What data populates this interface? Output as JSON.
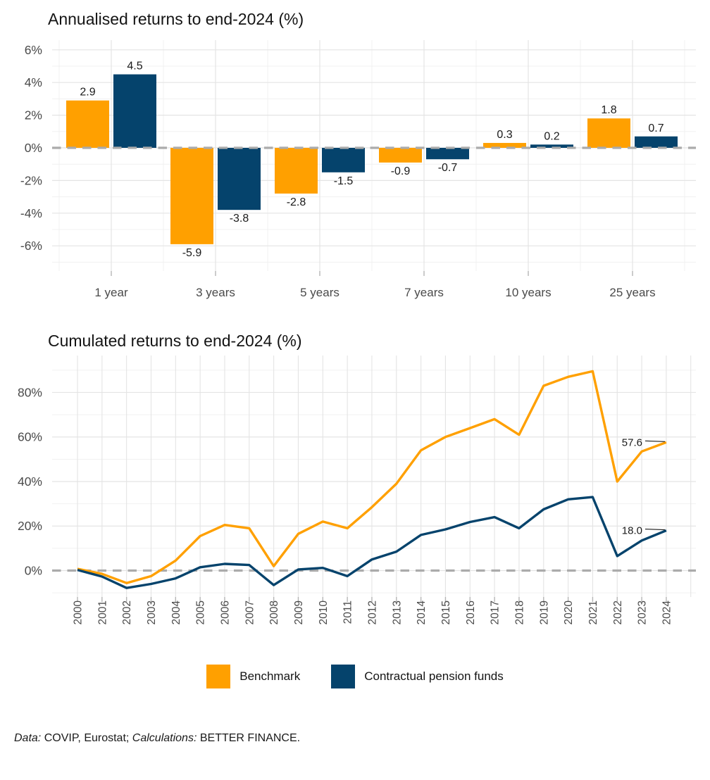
{
  "chart_data": [
    {
      "type": "bar",
      "title": "Annualised returns to end-2024 (%)",
      "categories": [
        "1 year",
        "3 years",
        "5 years",
        "7 years",
        "10 years",
        "25 years"
      ],
      "series": [
        {
          "name": "Benchmark",
          "color": "#FFA000",
          "values": [
            2.9,
            -5.9,
            -2.8,
            -0.9,
            0.3,
            1.8
          ]
        },
        {
          "name": "Contractual pension funds",
          "color": "#05436C",
          "values": [
            4.5,
            -3.8,
            -1.5,
            -0.7,
            0.2,
            0.7
          ]
        }
      ],
      "yticks": [
        6,
        4,
        2,
        0,
        -2,
        -4,
        -6
      ],
      "ytick_labels": [
        "6%",
        "4%",
        "2%",
        "0%",
        "-2%",
        "-4%",
        "-6%"
      ],
      "yticks_minor": [
        5,
        3,
        1,
        -1,
        -3,
        -5,
        -7
      ],
      "ylim": [
        -7.4,
        6.6
      ],
      "grid": true,
      "zero_line": "dashed",
      "bar_labels": true,
      "legend_position": "bottom"
    },
    {
      "type": "line",
      "title": "Cumulated returns to end-2024 (%)",
      "x": [
        2000,
        2001,
        2002,
        2003,
        2004,
        2005,
        2006,
        2007,
        2008,
        2009,
        2010,
        2011,
        2012,
        2013,
        2014,
        2015,
        2016,
        2017,
        2018,
        2019,
        2020,
        2021,
        2022,
        2023,
        2024
      ],
      "series": [
        {
          "name": "Benchmark",
          "color": "#FFA000",
          "end_label": "57.6",
          "values": [
            0.8,
            -1.5,
            -5.6,
            -2.5,
            4.5,
            15.5,
            20.5,
            19.0,
            2.0,
            16.5,
            22.0,
            19.0,
            28.5,
            39.0,
            54.0,
            60.0,
            64.0,
            68.0,
            61.0,
            83.0,
            87.0,
            89.5,
            40.0,
            53.5,
            57.6
          ]
        },
        {
          "name": "Contractual pension funds",
          "color": "#05436C",
          "end_label": "18.0",
          "values": [
            0.3,
            -2.7,
            -7.8,
            -6.0,
            -3.5,
            1.5,
            3.0,
            2.5,
            -6.5,
            0.5,
            1.2,
            -2.5,
            5.0,
            8.5,
            16.0,
            18.5,
            21.8,
            24.0,
            19.0,
            27.5,
            32.0,
            33.0,
            6.5,
            13.5,
            18.0
          ]
        }
      ],
      "yticks": [
        80,
        60,
        40,
        20,
        0
      ],
      "ytick_labels": [
        "80%",
        "60%",
        "40%",
        "20%",
        "0%"
      ],
      "yticks_minor": [
        90,
        70,
        50,
        30,
        10,
        -10
      ],
      "ylim": [
        -12,
        96
      ],
      "grid": true,
      "zero_line": "dashed",
      "legend_position": "bottom"
    }
  ],
  "legend": {
    "items": [
      {
        "label": "Benchmark",
        "color": "#FFA000"
      },
      {
        "label": "Contractual pension funds",
        "color": "#05436C"
      }
    ]
  },
  "footer": {
    "parts": [
      {
        "text": "Data:",
        "italic": true
      },
      {
        "text": " COVIP, Eurostat; ",
        "italic": false
      },
      {
        "text": "Calculations:",
        "italic": true
      },
      {
        "text": " BETTER FINANCE.",
        "italic": false
      }
    ]
  }
}
